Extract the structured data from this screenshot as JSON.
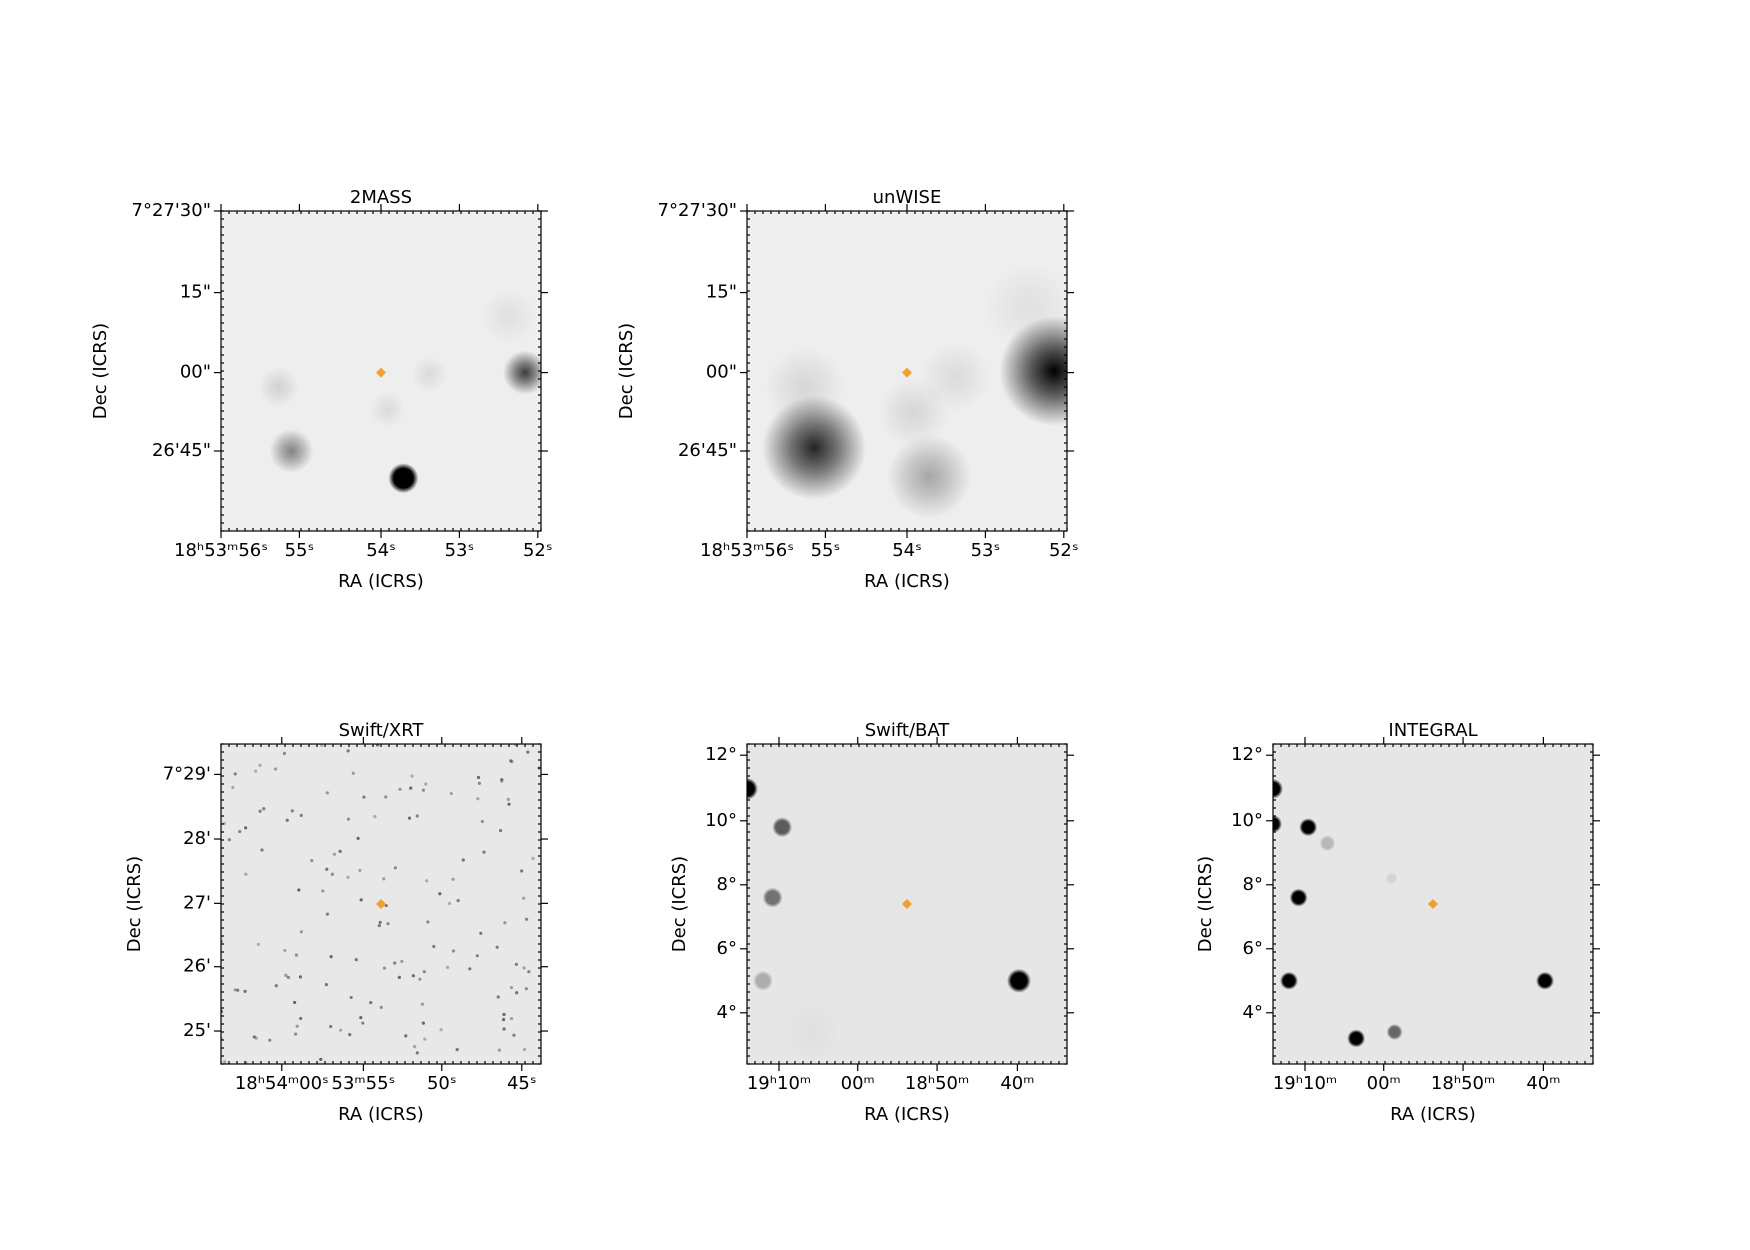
{
  "panels": [
    {
      "title": "2MASS",
      "xlabel": "RA (ICRS)",
      "ylabel": "Dec (ICRS)",
      "xticks": [
        "18ʰ53ᵐ56ˢ",
        "55ˢ",
        "54ˢ",
        "53ˢ",
        "52ˢ"
      ],
      "yticks": [
        "7°27'30\"",
        "15\"",
        "00\"",
        "26'45\""
      ]
    },
    {
      "title": "unWISE",
      "xlabel": "RA (ICRS)",
      "ylabel": "Dec (ICRS)",
      "xticks": [
        "18ʰ53ᵐ56ˢ",
        "55ˢ",
        "54ˢ",
        "53ˢ",
        "52ˢ"
      ],
      "yticks": [
        "7°27'30\"",
        "15\"",
        "00\"",
        "26'45\""
      ]
    },
    {
      "title": "Swift/XRT",
      "xlabel": "RA (ICRS)",
      "ylabel": "Dec (ICRS)",
      "xticks": [
        "18ʰ54ᵐ00ˢ",
        "53ᵐ55ˢ",
        "50ˢ",
        "45ˢ"
      ],
      "yticks": [
        "7°29'",
        "28'",
        "27'",
        "26'",
        "25'"
      ]
    },
    {
      "title": "Swift/BAT",
      "xlabel": "RA (ICRS)",
      "ylabel": "Dec (ICRS)",
      "xticks": [
        "19ʰ10ᵐ",
        "00ᵐ",
        "18ʰ50ᵐ",
        "40ᵐ"
      ],
      "yticks": [
        "12°",
        "10°",
        "8°",
        "6°",
        "4°"
      ]
    },
    {
      "title": "INTEGRAL",
      "xlabel": "RA (ICRS)",
      "ylabel": "Dec (ICRS)",
      "xticks": [
        "19ʰ10ᵐ",
        "00ᵐ",
        "18ʰ50ᵐ",
        "40ᵐ"
      ],
      "yticks": [
        "12°",
        "10°",
        "8°",
        "6°",
        "4°"
      ]
    }
  ]
}
